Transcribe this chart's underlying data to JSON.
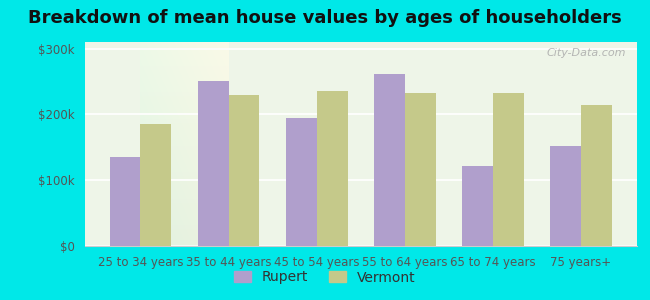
{
  "title": "Breakdown of mean house values by ages of householders",
  "categories": [
    "25 to 34 years",
    "35 to 44 years",
    "45 to 54 years",
    "55 to 64 years",
    "65 to 74 years",
    "75 years+"
  ],
  "rupert": [
    135000,
    250000,
    195000,
    262000,
    122000,
    152000
  ],
  "vermont": [
    185000,
    230000,
    235000,
    232000,
    232000,
    215000
  ],
  "rupert_color": "#b09fcc",
  "vermont_color": "#c5c98a",
  "background_color": "#00e8e8",
  "ylim": [
    0,
    310000
  ],
  "yticks": [
    0,
    100000,
    200000,
    300000
  ],
  "ytick_labels": [
    "$0",
    "$100k",
    "$200k",
    "$300k"
  ],
  "legend_labels": [
    "Rupert",
    "Vermont"
  ],
  "bar_width": 0.35,
  "title_fontsize": 13,
  "tick_fontsize": 8.5,
  "legend_fontsize": 10
}
